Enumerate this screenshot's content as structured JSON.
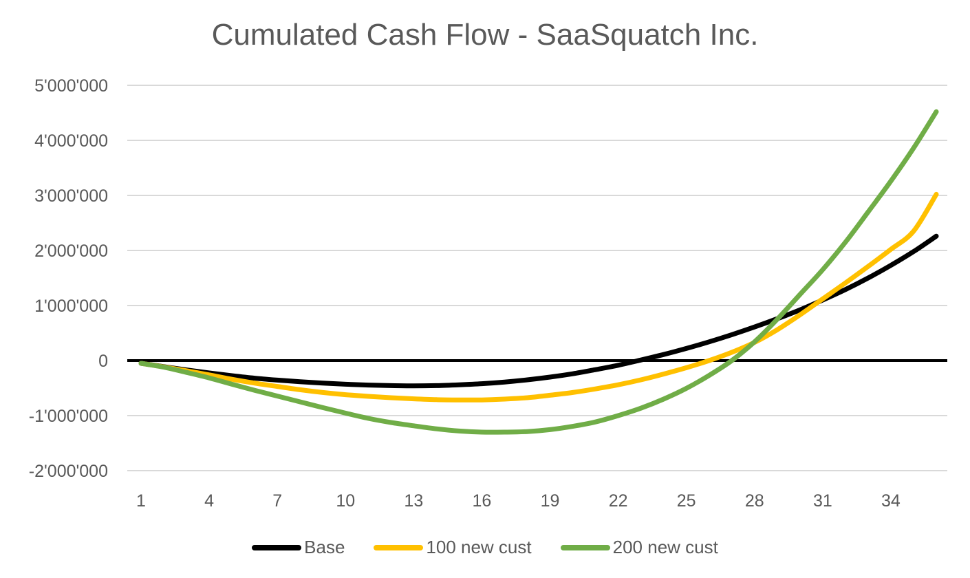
{
  "chart_data": {
    "type": "line",
    "title": "Cumulated Cash Flow - SaaSquatch Inc.",
    "xlabel": "",
    "ylabel": "",
    "x": [
      1,
      2,
      3,
      4,
      5,
      6,
      7,
      8,
      9,
      10,
      11,
      12,
      13,
      14,
      15,
      16,
      17,
      18,
      19,
      20,
      21,
      22,
      23,
      24,
      25,
      26,
      27,
      28,
      29,
      30,
      31,
      32,
      33,
      34,
      35,
      36
    ],
    "x_tick_labels": [
      "1",
      "4",
      "7",
      "10",
      "13",
      "16",
      "19",
      "22",
      "25",
      "28",
      "31",
      "34"
    ],
    "ylim": [
      -2000000,
      5000000
    ],
    "y_ticks": [
      -2000000,
      -1000000,
      0,
      1000000,
      2000000,
      3000000,
      4000000,
      5000000
    ],
    "y_tick_labels": [
      "-2'000'000",
      "-1'000'000",
      "0",
      "1'000'000",
      "2'000'000",
      "3'000'000",
      "4'000'000",
      "5'000'000"
    ],
    "grid": true,
    "legend_position": "bottom",
    "series": [
      {
        "name": "Base",
        "color": "#000000",
        "values": [
          -50000,
          -110000,
          -170000,
          -225000,
          -275000,
          -320000,
          -355000,
          -385000,
          -410000,
          -430000,
          -445000,
          -455000,
          -460000,
          -455000,
          -440000,
          -420000,
          -390000,
          -350000,
          -300000,
          -240000,
          -165000,
          -85000,
          10000,
          110000,
          220000,
          340000,
          470000,
          610000,
          760000,
          920000,
          1100000,
          1290000,
          1500000,
          1730000,
          1980000,
          2260000
        ]
      },
      {
        "name": "100 new cust",
        "color": "#FFC000",
        "values": [
          -50000,
          -115000,
          -185000,
          -260000,
          -340000,
          -410000,
          -470000,
          -530000,
          -580000,
          -620000,
          -650000,
          -675000,
          -695000,
          -710000,
          -715000,
          -715000,
          -700000,
          -675000,
          -630000,
          -580000,
          -515000,
          -440000,
          -350000,
          -245000,
          -130000,
          0,
          150000,
          330000,
          560000,
          830000,
          1120000,
          1410000,
          1710000,
          2020000,
          2350000,
          3020000
        ]
      },
      {
        "name": "200 new cust",
        "color": "#70AD47",
        "values": [
          -50000,
          -120000,
          -215000,
          -315000,
          -430000,
          -540000,
          -645000,
          -750000,
          -855000,
          -955000,
          -1050000,
          -1125000,
          -1185000,
          -1240000,
          -1280000,
          -1300000,
          -1300000,
          -1290000,
          -1255000,
          -1195000,
          -1115000,
          -1000000,
          -865000,
          -700000,
          -505000,
          -270000,
          0,
          340000,
          750000,
          1200000,
          1650000,
          2150000,
          2700000,
          3260000,
          3860000,
          4520000
        ]
      }
    ]
  }
}
